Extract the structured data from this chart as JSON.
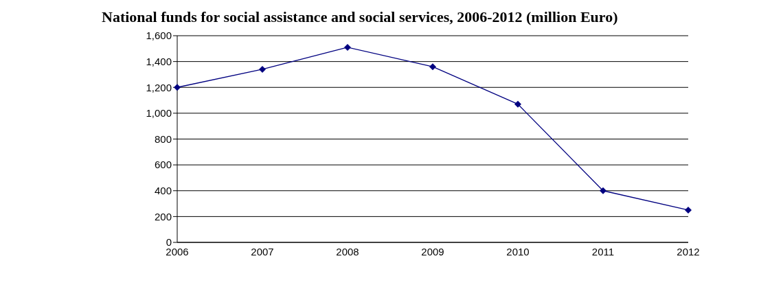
{
  "chart_data": {
    "type": "line",
    "title": "National funds for social assistance and social services, 2006-2012 (million Euro)",
    "categories": [
      "2006",
      "2007",
      "2008",
      "2009",
      "2010",
      "2011",
      "2012"
    ],
    "series": [
      {
        "color": "#000080",
        "values": [
          1200,
          1340,
          1510,
          1360,
          1070,
          400,
          250
        ]
      }
    ],
    "ylim": [
      0,
      1600
    ],
    "yticks": [
      {
        "value": 0,
        "label": "0"
      },
      {
        "value": 200,
        "label": "200"
      },
      {
        "value": 400,
        "label": "400"
      },
      {
        "value": 600,
        "label": "600"
      },
      {
        "value": 800,
        "label": "800"
      },
      {
        "value": 1000,
        "label": "1,000"
      },
      {
        "value": 1200,
        "label": "1,200"
      },
      {
        "value": 1400,
        "label": "1,400"
      },
      {
        "value": 1600,
        "label": "1,600"
      }
    ],
    "grid": "y",
    "marker": "diamond",
    "line_style": "solid",
    "legend": false
  }
}
